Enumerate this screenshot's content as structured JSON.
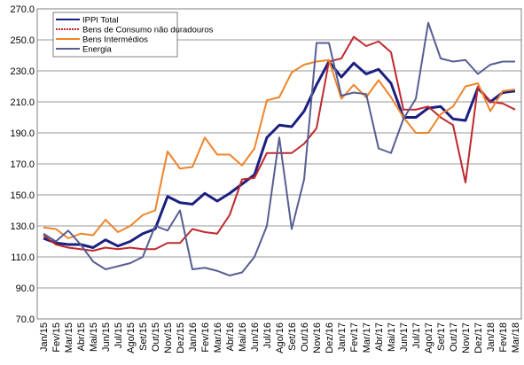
{
  "chart_data": {
    "type": "line",
    "categories": [
      "Jan/15",
      "Fev/15",
      "Mar/15",
      "Abr/15",
      "Mai/15",
      "Jun/15",
      "Jul/15",
      "Ago/15",
      "Set/15",
      "Out/15",
      "Nov/15",
      "Dez/15",
      "Jan/16",
      "Fev/16",
      "Mar/16",
      "Abr/16",
      "Mai/16",
      "Jun/16",
      "Jul/16",
      "Ago/16",
      "Set/16",
      "Out/16",
      "Nov/16",
      "Dez/16",
      "Jan/17",
      "Fev/17",
      "Mar/17",
      "Abr/17",
      "Mai/17",
      "Jun/17",
      "Jul/17",
      "Ago/17",
      "Set/17",
      "Out/17",
      "Nov/17",
      "Dez/17",
      "Jan/18",
      "Fev/18",
      "Mar/18"
    ],
    "series": [
      {
        "name": "IPPI Total",
        "color": "#1a1f80",
        "values": [
          122,
          119,
          118,
          118,
          116,
          121,
          117,
          120,
          125,
          128,
          149,
          145,
          144,
          151,
          146,
          151,
          157,
          163,
          187,
          195,
          194,
          204,
          221,
          236,
          226,
          235,
          228,
          231,
          222,
          200,
          200,
          206,
          207,
          199,
          198,
          219,
          210,
          216,
          217
        ]
      },
      {
        "name": "Bens de Consumo não duradouros",
        "color": "#c0282d",
        "values": [
          124,
          118,
          116,
          115,
          114,
          116,
          115,
          116,
          115,
          115,
          119,
          119,
          128,
          126,
          125,
          137,
          160,
          161,
          177,
          177,
          177,
          183,
          193,
          236,
          238,
          252,
          246,
          249,
          242,
          205,
          205,
          207,
          200,
          195,
          158,
          220,
          210,
          209,
          205
        ]
      },
      {
        "name": "Bens Intermédios",
        "color": "#f0842a",
        "values": [
          129,
          128,
          122,
          125,
          124,
          134,
          126,
          130,
          137,
          140,
          178,
          167,
          168,
          187,
          176,
          176,
          169,
          180,
          211,
          213,
          229,
          234,
          236,
          237,
          212,
          221,
          213,
          224,
          213,
          200,
          190,
          190,
          202,
          207,
          220,
          222,
          204,
          217,
          218
        ]
      },
      {
        "name": "Energia",
        "color": "#565e92",
        "values": [
          125,
          120,
          127,
          118,
          107,
          102,
          104,
          106,
          110,
          130,
          127,
          140,
          102,
          103,
          101,
          98,
          100,
          110,
          130,
          187,
          128,
          160,
          248,
          248,
          214,
          216,
          215,
          180,
          177,
          199,
          212,
          261,
          238,
          236,
          237,
          228,
          234,
          236,
          236
        ]
      }
    ],
    "ylim": [
      70,
      270
    ],
    "yticks": [
      {
        "value": 70,
        "label": "70.0"
      },
      {
        "value": 90,
        "label": "90.0"
      },
      {
        "value": 110,
        "label": "110.0"
      },
      {
        "value": 130,
        "label": "130.0"
      },
      {
        "value": 150,
        "label": "150.0"
      },
      {
        "value": 170,
        "label": "170.0"
      },
      {
        "value": 190,
        "label": "190.0"
      },
      {
        "value": 210,
        "label": "210.0"
      },
      {
        "value": 230,
        "label": "230.0"
      },
      {
        "value": 250,
        "label": "250.0"
      },
      {
        "value": 270,
        "label": "270.0"
      }
    ],
    "grid": true
  }
}
